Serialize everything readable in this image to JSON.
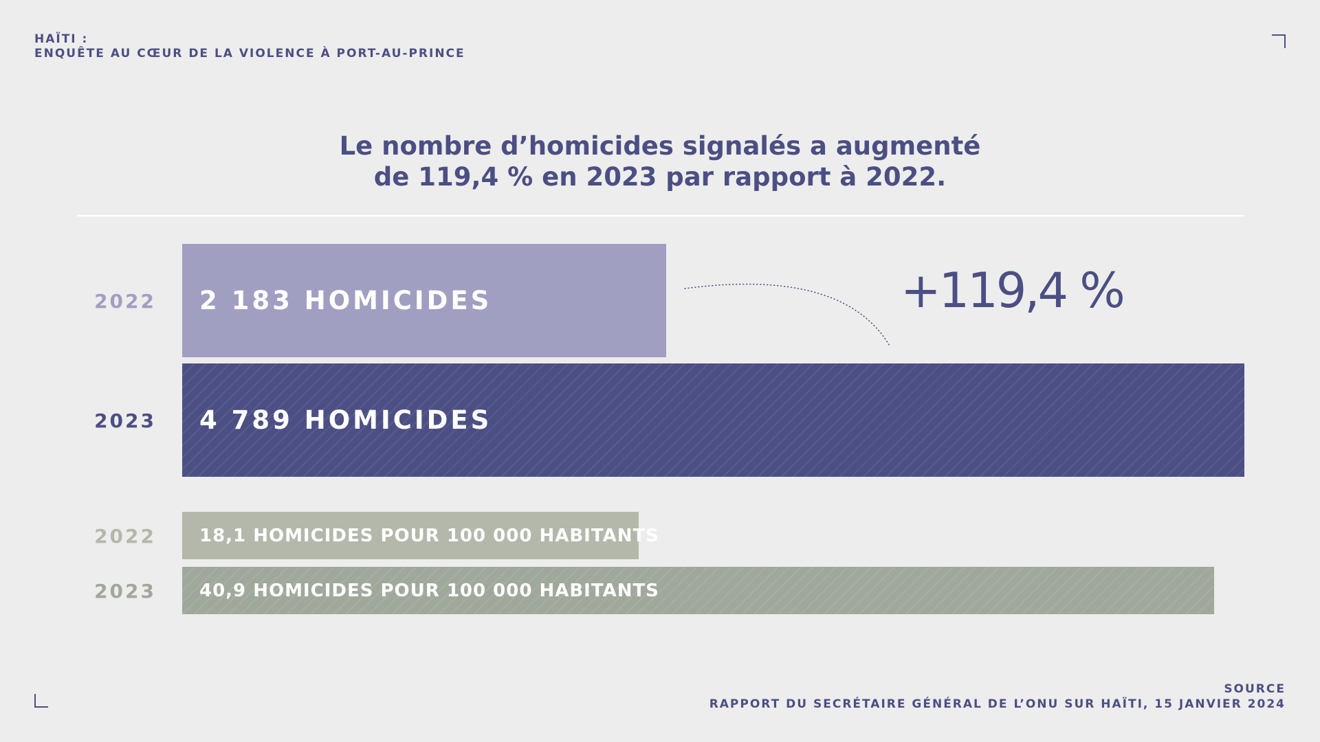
{
  "header": {
    "line1": "HAÏTI :",
    "line2": "ENQUÊTE AU CŒUR DE LA VIOLENCE À PORT-AU-PRINCE"
  },
  "colors": {
    "primary": "#4b4f83",
    "light_purple": "#a09fc2",
    "light_gray": "#b3b8aa",
    "mid_gray": "#a0a89b",
    "background": "#ededed"
  },
  "chart_data": [
    {
      "type": "bar",
      "title_line1": "Le nombre d’homicides signalés a augmenté",
      "title_line2": "de 119,4 % en 2023 par rapport à 2022.",
      "categories": [
        "2022",
        "2023"
      ],
      "values": [
        2183,
        4789
      ],
      "labels": [
        "2 183 HOMICIDES",
        "4 789 HOMICIDES"
      ],
      "annotation": "+119,4 %",
      "xmax": 4789
    },
    {
      "type": "bar",
      "categories": [
        "2022",
        "2023"
      ],
      "values": [
        18.1,
        40.9
      ],
      "labels": [
        "18,1 HOMICIDES POUR 100 000 HABITANTS",
        "40,9 HOMICIDES POUR 100 000 HABITANTS"
      ],
      "xmax": 42.1
    }
  ],
  "source": {
    "label": "SOURCE",
    "text": "RAPPORT DU SECRÉTAIRE GÉNÉRAL DE L’ONU SUR HAÏTI, 15 JANVIER 2024"
  }
}
